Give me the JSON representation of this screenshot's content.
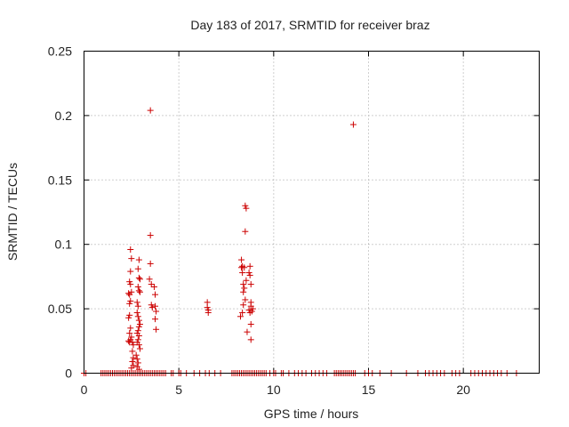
{
  "chart_data": {
    "type": "scatter",
    "title": "Day 183 of 2017, SRMTID for receiver braz",
    "xlabel": "GPS time / hours",
    "ylabel": "SRMTID / TECUs",
    "xlim": [
      0,
      24
    ],
    "ylim": [
      0,
      0.25
    ],
    "xticks": [
      0,
      5,
      10,
      15,
      20
    ],
    "yticks": [
      0,
      0.05,
      0.1,
      0.15,
      0.2,
      0.25
    ],
    "xtick_labels": [
      "0",
      "5",
      "10",
      "15",
      "20"
    ],
    "ytick_labels": [
      "0",
      "0.05",
      "0.1",
      "0.15",
      "0.2",
      "0.25"
    ],
    "grid": true,
    "marker": "plus",
    "color": "#cc0000",
    "series": [
      {
        "name": "SRMTID",
        "points": [
          [
            0.0,
            0
          ],
          [
            0.1,
            0
          ],
          [
            0.9,
            0
          ],
          [
            1.0,
            0
          ],
          [
            1.1,
            0
          ],
          [
            1.2,
            0
          ],
          [
            1.3,
            0
          ],
          [
            1.4,
            0
          ],
          [
            1.5,
            0
          ],
          [
            1.6,
            0
          ],
          [
            1.7,
            0
          ],
          [
            1.8,
            0
          ],
          [
            1.9,
            0
          ],
          [
            2.0,
            0
          ],
          [
            2.1,
            0
          ],
          [
            2.2,
            0
          ],
          [
            2.3,
            0
          ],
          [
            2.4,
            0
          ],
          [
            2.5,
            0
          ],
          [
            2.6,
            0
          ],
          [
            2.7,
            0
          ],
          [
            2.8,
            0
          ],
          [
            2.9,
            0
          ],
          [
            3.0,
            0
          ],
          [
            3.1,
            0
          ],
          [
            3.2,
            0
          ],
          [
            3.3,
            0
          ],
          [
            3.4,
            0
          ],
          [
            3.5,
            0
          ],
          [
            3.6,
            0
          ],
          [
            3.7,
            0
          ],
          [
            3.8,
            0
          ],
          [
            3.9,
            0
          ],
          [
            4.0,
            0
          ],
          [
            4.1,
            0
          ],
          [
            4.2,
            0
          ],
          [
            4.3,
            0
          ],
          [
            4.6,
            0
          ],
          [
            4.7,
            0
          ],
          [
            5.0,
            0
          ],
          [
            5.1,
            0
          ],
          [
            5.4,
            0
          ],
          [
            5.8,
            0
          ],
          [
            6.1,
            0
          ],
          [
            6.4,
            0
          ],
          [
            6.6,
            0
          ],
          [
            6.9,
            0
          ],
          [
            7.2,
            0
          ],
          [
            7.8,
            0
          ],
          [
            7.9,
            0
          ],
          [
            8.0,
            0
          ],
          [
            8.1,
            0
          ],
          [
            8.2,
            0
          ],
          [
            8.3,
            0
          ],
          [
            8.4,
            0
          ],
          [
            8.5,
            0
          ],
          [
            8.6,
            0
          ],
          [
            8.7,
            0
          ],
          [
            8.8,
            0
          ],
          [
            8.9,
            0
          ],
          [
            9.0,
            0
          ],
          [
            9.1,
            0
          ],
          [
            9.2,
            0
          ],
          [
            9.3,
            0
          ],
          [
            9.4,
            0
          ],
          [
            9.5,
            0
          ],
          [
            9.6,
            0
          ],
          [
            9.8,
            0
          ],
          [
            10.0,
            0
          ],
          [
            10.1,
            0
          ],
          [
            10.4,
            0
          ],
          [
            10.5,
            0
          ],
          [
            10.8,
            0
          ],
          [
            11.1,
            0
          ],
          [
            11.3,
            0
          ],
          [
            11.5,
            0
          ],
          [
            11.7,
            0
          ],
          [
            12.0,
            0
          ],
          [
            12.2,
            0
          ],
          [
            12.4,
            0
          ],
          [
            12.6,
            0
          ],
          [
            12.8,
            0
          ],
          [
            13.2,
            0
          ],
          [
            13.3,
            0
          ],
          [
            13.4,
            0
          ],
          [
            13.5,
            0
          ],
          [
            13.6,
            0
          ],
          [
            13.7,
            0
          ],
          [
            13.8,
            0
          ],
          [
            13.9,
            0
          ],
          [
            14.0,
            0
          ],
          [
            14.1,
            0
          ],
          [
            14.2,
            0
          ],
          [
            14.3,
            0
          ],
          [
            14.8,
            0
          ],
          [
            15.0,
            0
          ],
          [
            15.2,
            0
          ],
          [
            15.6,
            0
          ],
          [
            16.2,
            0
          ],
          [
            17.0,
            0
          ],
          [
            17.6,
            0
          ],
          [
            18.0,
            0
          ],
          [
            18.2,
            0
          ],
          [
            18.4,
            0
          ],
          [
            18.6,
            0
          ],
          [
            18.8,
            0
          ],
          [
            19.0,
            0
          ],
          [
            19.4,
            0
          ],
          [
            19.6,
            0
          ],
          [
            19.8,
            0
          ],
          [
            20.4,
            0
          ],
          [
            20.6,
            0
          ],
          [
            20.8,
            0
          ],
          [
            21.0,
            0
          ],
          [
            21.2,
            0
          ],
          [
            21.4,
            0
          ],
          [
            21.6,
            0
          ],
          [
            21.8,
            0
          ],
          [
            22.0,
            0
          ],
          [
            22.3,
            0
          ],
          [
            22.8,
            0
          ],
          [
            2.45,
            0.096
          ],
          [
            2.5,
            0.089
          ],
          [
            2.45,
            0.079
          ],
          [
            2.4,
            0.071
          ],
          [
            2.45,
            0.069
          ],
          [
            2.35,
            0.062
          ],
          [
            2.4,
            0.061
          ],
          [
            2.5,
            0.063
          ],
          [
            2.45,
            0.056
          ],
          [
            2.4,
            0.054
          ],
          [
            2.4,
            0.045
          ],
          [
            2.35,
            0.043
          ],
          [
            2.45,
            0.035
          ],
          [
            2.4,
            0.031
          ],
          [
            2.5,
            0.028
          ],
          [
            2.45,
            0.026
          ],
          [
            2.35,
            0.025
          ],
          [
            2.4,
            0.024
          ],
          [
            2.55,
            0.024
          ],
          [
            2.6,
            0.022
          ],
          [
            2.55,
            0.017
          ],
          [
            2.6,
            0.012
          ],
          [
            2.55,
            0.009
          ],
          [
            2.6,
            0.006
          ],
          [
            2.5,
            0.004
          ],
          [
            2.75,
            0.014
          ],
          [
            2.8,
            0.011
          ],
          [
            2.85,
            0.008
          ],
          [
            2.8,
            0.005
          ],
          [
            2.9,
            0.003
          ],
          [
            2.9,
            0.088
          ],
          [
            2.85,
            0.081
          ],
          [
            2.9,
            0.074
          ],
          [
            2.95,
            0.073
          ],
          [
            2.85,
            0.067
          ],
          [
            2.9,
            0.064
          ],
          [
            2.95,
            0.063
          ],
          [
            2.8,
            0.055
          ],
          [
            2.85,
            0.052
          ],
          [
            2.8,
            0.047
          ],
          [
            2.85,
            0.044
          ],
          [
            2.9,
            0.041
          ],
          [
            2.95,
            0.038
          ],
          [
            2.9,
            0.036
          ],
          [
            2.85,
            0.033
          ],
          [
            2.8,
            0.031
          ],
          [
            2.9,
            0.029
          ],
          [
            2.85,
            0.026
          ],
          [
            2.8,
            0.024
          ],
          [
            2.9,
            0.022
          ],
          [
            2.95,
            0.019
          ],
          [
            3.5,
            0.204
          ],
          [
            3.5,
            0.107
          ],
          [
            3.5,
            0.085
          ],
          [
            3.45,
            0.073
          ],
          [
            3.55,
            0.069
          ],
          [
            3.7,
            0.067
          ],
          [
            3.75,
            0.061
          ],
          [
            3.55,
            0.053
          ],
          [
            3.6,
            0.051
          ],
          [
            3.75,
            0.052
          ],
          [
            3.8,
            0.048
          ],
          [
            3.75,
            0.042
          ],
          [
            3.8,
            0.034
          ],
          [
            6.5,
            0.055
          ],
          [
            6.5,
            0.051
          ],
          [
            6.55,
            0.049
          ],
          [
            6.55,
            0.047
          ],
          [
            8.3,
            0.088
          ],
          [
            8.35,
            0.083
          ],
          [
            8.3,
            0.082
          ],
          [
            8.45,
            0.082
          ],
          [
            8.35,
            0.078
          ],
          [
            8.55,
            0.072
          ],
          [
            8.4,
            0.069
          ],
          [
            8.45,
            0.066
          ],
          [
            8.4,
            0.063
          ],
          [
            8.5,
            0.057
          ],
          [
            8.4,
            0.053
          ],
          [
            8.35,
            0.047
          ],
          [
            8.25,
            0.044
          ],
          [
            8.5,
            0.13
          ],
          [
            8.55,
            0.128
          ],
          [
            8.5,
            0.11
          ],
          [
            8.75,
            0.083
          ],
          [
            8.7,
            0.078
          ],
          [
            8.75,
            0.076
          ],
          [
            8.8,
            0.069
          ],
          [
            8.8,
            0.055
          ],
          [
            8.8,
            0.052
          ],
          [
            8.7,
            0.049
          ],
          [
            8.75,
            0.047
          ],
          [
            8.9,
            0.05
          ],
          [
            8.85,
            0.048
          ],
          [
            8.8,
            0.038
          ],
          [
            8.6,
            0.032
          ],
          [
            8.8,
            0.026
          ],
          [
            14.2,
            0.193
          ]
        ]
      }
    ]
  }
}
